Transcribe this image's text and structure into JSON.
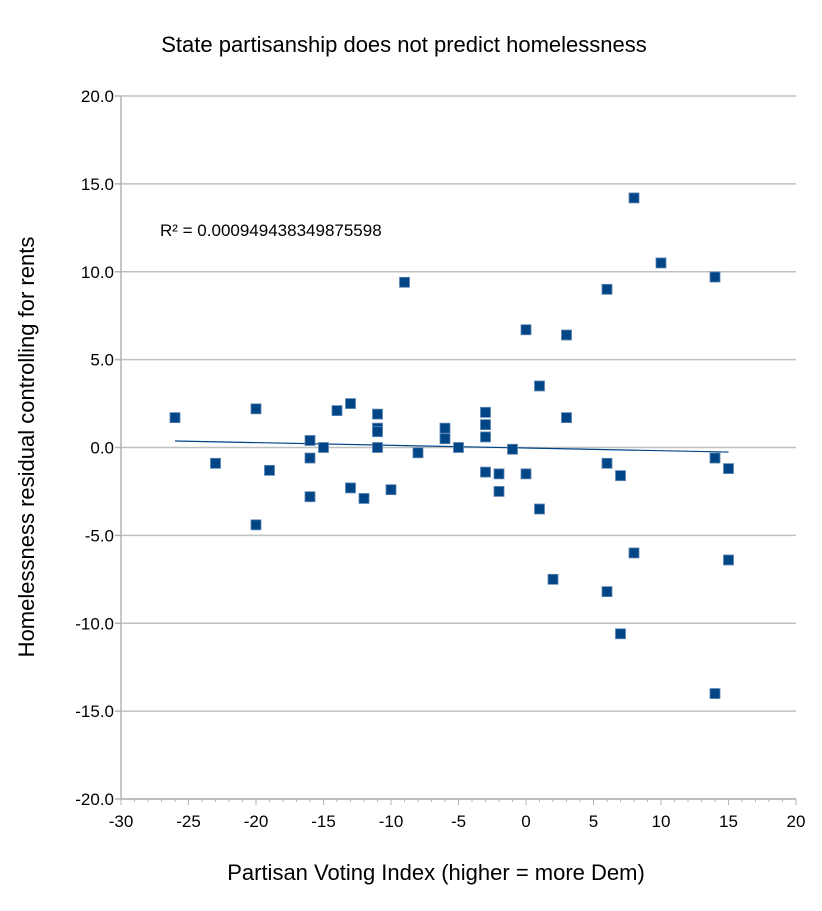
{
  "chart_data": {
    "type": "scatter",
    "title": "State partisanship does not predict homelessness",
    "xlabel": "Partisan Voting Index (higher = more Dem)",
    "ylabel": "Homelessness residual controlling for rents",
    "xlim": [
      -30,
      20
    ],
    "ylim": [
      -20,
      20
    ],
    "xticks": [
      -30,
      -25,
      -20,
      -15,
      -10,
      -5,
      0,
      5,
      10,
      15,
      20
    ],
    "yticks": [
      -20,
      -15,
      -10,
      -5,
      0,
      5,
      10,
      15,
      20
    ],
    "xtick_labels": [
      "-30",
      "-25",
      "-20",
      "-15",
      "-10",
      "-5",
      "0",
      "5",
      "10",
      "15",
      "20"
    ],
    "ytick_labels": [
      "-20.0",
      "-15.0",
      "-10.0",
      "-5.0",
      "0.0",
      "5.0",
      "10.0",
      "15.0",
      "20.0"
    ],
    "grid": "horizontal",
    "marker_color": "#004586",
    "annotation": "R² = 0.000949438349875598",
    "trendline": {
      "x": [
        -26,
        15
      ],
      "y": [
        0.37,
        -0.26
      ]
    },
    "points": [
      [
        -26,
        1.7
      ],
      [
        -23,
        -0.9
      ],
      [
        -20,
        2.2
      ],
      [
        -20,
        -4.4
      ],
      [
        -19,
        -1.3
      ],
      [
        -16,
        0.4
      ],
      [
        -16,
        -0.6
      ],
      [
        -16,
        -2.8
      ],
      [
        -15,
        0.0
      ],
      [
        -14,
        2.1
      ],
      [
        -13,
        2.5
      ],
      [
        -13,
        -2.3
      ],
      [
        -12,
        -2.9
      ],
      [
        -11,
        1.9
      ],
      [
        -11,
        1.1
      ],
      [
        -11,
        0.9
      ],
      [
        -11,
        0.0
      ],
      [
        -10,
        -2.4
      ],
      [
        -9,
        9.4
      ],
      [
        -8,
        -0.3
      ],
      [
        -6,
        1.1
      ],
      [
        -6,
        0.5
      ],
      [
        -5,
        0.0
      ],
      [
        -3,
        2.0
      ],
      [
        -3,
        1.3
      ],
      [
        -3,
        0.6
      ],
      [
        -3,
        -1.4
      ],
      [
        -2,
        -1.5
      ],
      [
        -2,
        -2.5
      ],
      [
        -1,
        -0.1
      ],
      [
        0,
        6.7
      ],
      [
        0,
        -1.5
      ],
      [
        1,
        3.5
      ],
      [
        1,
        -3.5
      ],
      [
        2,
        -7.5
      ],
      [
        3,
        6.4
      ],
      [
        3,
        1.7
      ],
      [
        6,
        9.0
      ],
      [
        6,
        -0.9
      ],
      [
        6,
        -8.2
      ],
      [
        7,
        -1.6
      ],
      [
        7,
        -10.6
      ],
      [
        8,
        14.2
      ],
      [
        8,
        -6.0
      ],
      [
        10,
        10.5
      ],
      [
        14,
        9.7
      ],
      [
        14,
        -0.6
      ],
      [
        14,
        -14.0
      ],
      [
        15,
        -1.2
      ],
      [
        15,
        -6.4
      ]
    ]
  }
}
